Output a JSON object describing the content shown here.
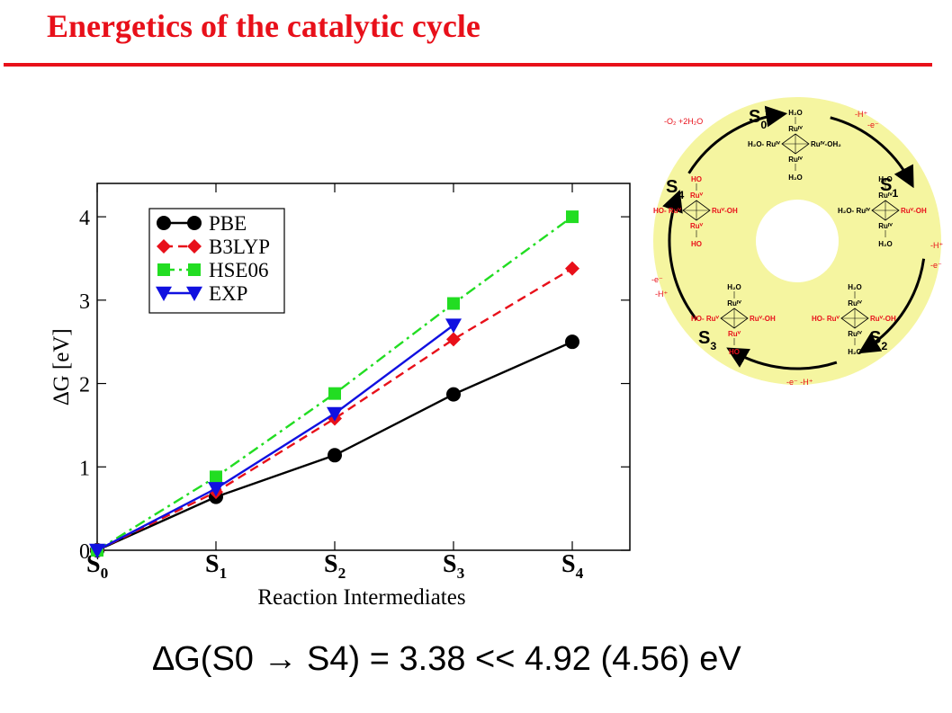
{
  "slide": {
    "title": "Energetics of the catalytic cycle",
    "title_color": "#e8101a",
    "summary": "∆G(S0 → S4) = 3.38 << 4.92 (4.56) eV"
  },
  "chart_data": {
    "type": "line",
    "categories": [
      "S0",
      "S1",
      "S2",
      "S3",
      "S4"
    ],
    "category_labels": [
      {
        "main": "S",
        "sub": "0"
      },
      {
        "main": "S",
        "sub": "1"
      },
      {
        "main": "S",
        "sub": "2"
      },
      {
        "main": "S",
        "sub": "3"
      },
      {
        "main": "S",
        "sub": "4"
      }
    ],
    "xlabel": "Reaction Intermediates",
    "ylabel": "∆G [eV]",
    "ylim": [
      0,
      4.4
    ],
    "yticks": [
      0,
      1,
      2,
      3,
      4
    ],
    "grid": false,
    "legend_position": "top-left",
    "series": [
      {
        "name": "PBE",
        "values": [
          0,
          0.64,
          1.14,
          1.87,
          2.5
        ],
        "color": "#000000",
        "marker": "circle",
        "dash": "solid"
      },
      {
        "name": "B3LYP",
        "values": [
          0,
          0.7,
          1.58,
          2.53,
          3.38
        ],
        "color": "#e8101a",
        "marker": "diamond",
        "dash": "dashed"
      },
      {
        "name": "HSE06",
        "values": [
          0,
          0.88,
          1.88,
          2.96,
          4.0
        ],
        "color": "#22dd22",
        "marker": "square",
        "dash": "dashdot"
      },
      {
        "name": "EXP",
        "values": [
          0,
          0.74,
          1.64,
          2.7,
          null
        ],
        "color": "#1010e0",
        "marker": "triangle-down",
        "dash": "solid"
      }
    ]
  },
  "cycle": {
    "ring_color": "#f5f5a0",
    "label_color": "#e8101a",
    "states": [
      {
        "main": "S",
        "sub": "0"
      },
      {
        "main": "S",
        "sub": "1"
      },
      {
        "main": "S",
        "sub": "2"
      },
      {
        "main": "S",
        "sub": "3"
      },
      {
        "main": "S",
        "sub": "4"
      }
    ],
    "transitions": {
      "s0_s1": [
        "-H⁺",
        "-e⁻"
      ],
      "s1_s2": [
        "-H⁺",
        "-e⁻"
      ],
      "s2_s3": [
        "-e⁻  -H⁺"
      ],
      "s3_s4": [
        "-e⁻",
        "-H⁺"
      ],
      "s4_s0": [
        "-O₂ +2H₂O"
      ]
    },
    "complexes": {
      "s0": {
        "top": "H₂O",
        "top_ru": "Ruᴵⱽ",
        "left": "H₂O- Ruᴵⱽ",
        "right": "Ruᴵⱽ-OH₂",
        "bottom_ru": "Ruᴵⱽ",
        "bottom": "H₂O"
      },
      "s1": {
        "top": "H₂O",
        "top_ru": "Ruᴵⱽ",
        "left": "H₂O- Ruᴵⱽ",
        "right": "Ruⱽ-OH",
        "bottom_ru": "Ruᴵⱽ",
        "bottom": "H₂O"
      },
      "s2": {
        "top": "H₂O",
        "top_ru": "Ruᴵⱽ",
        "left": "HO- Ruⱽ",
        "right": "Ruⱽ-OH",
        "bottom_ru": "Ruᴵⱽ",
        "bottom": "H₂O"
      },
      "s3": {
        "top": "H₂O",
        "top_ru": "Ruᴵⱽ",
        "left": "HO- Ruⱽ",
        "right": "Ruⱽ-OH",
        "bottom_ru": "Ruⱽ",
        "bottom": "HO"
      },
      "s4": {
        "top": "HO",
        "top_ru": "Ruⱽ",
        "left": "HO- Ruⱽ",
        "right": "Ruⱽ-OH",
        "bottom_ru": "Ruⱽ",
        "bottom": "HO"
      }
    }
  }
}
